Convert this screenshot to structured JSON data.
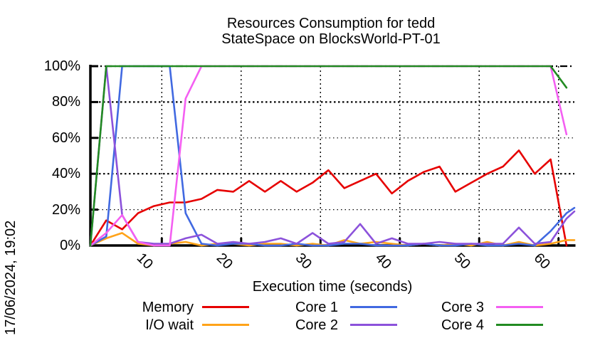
{
  "page": {
    "background": "#ffffff",
    "text_color": "#000000",
    "axis_color": "#000000"
  },
  "title": {
    "line1": "Resources Consumption for tedd",
    "line2": "StateSpace on BlocksWorld-PT-01"
  },
  "timestamp": "17/06/2024, 19:02",
  "chart_data": {
    "type": "line",
    "title": "Resources Consumption for tedd",
    "subtitle": "StateSpace on BlocksWorld-PT-01",
    "xlabel": "Execution time (seconds)",
    "ylabel": "",
    "xlim": [
      1,
      62
    ],
    "ylim": [
      0,
      100
    ],
    "grid": true,
    "legend_position": "bottom",
    "x_ticks": {
      "values": [
        10,
        20,
        30,
        40,
        50,
        60
      ],
      "labels": [
        "10",
        "20",
        "30",
        "40",
        "50",
        "60"
      ],
      "rotation_deg": 45
    },
    "y_ticks": {
      "values": [
        0,
        20,
        40,
        60,
        80,
        100
      ],
      "labels": [
        "0%",
        "20%",
        "40%",
        "60%",
        "80%",
        "100%"
      ]
    },
    "series": [
      {
        "name": "Memory",
        "color": "#e60000",
        "points": [
          [
            1,
            0
          ],
          [
            3,
            14
          ],
          [
            5,
            9
          ],
          [
            7,
            18
          ],
          [
            9,
            22
          ],
          [
            11,
            24
          ],
          [
            13,
            24
          ],
          [
            15,
            26
          ],
          [
            17,
            31
          ],
          [
            19,
            30
          ],
          [
            21,
            36
          ],
          [
            23,
            30
          ],
          [
            25,
            36
          ],
          [
            27,
            30
          ],
          [
            29,
            35
          ],
          [
            31,
            42
          ],
          [
            33,
            32
          ],
          [
            35,
            36
          ],
          [
            37,
            40
          ],
          [
            39,
            29
          ],
          [
            41,
            36
          ],
          [
            43,
            41
          ],
          [
            45,
            44
          ],
          [
            47,
            30
          ],
          [
            49,
            35
          ],
          [
            51,
            40
          ],
          [
            53,
            44
          ],
          [
            55,
            53
          ],
          [
            57,
            40
          ],
          [
            59,
            48
          ],
          [
            61,
            0
          ]
        ]
      },
      {
        "name": "I/O wait",
        "color": "#ffa319",
        "points": [
          [
            1,
            0
          ],
          [
            3,
            4
          ],
          [
            5,
            7
          ],
          [
            7,
            1
          ],
          [
            9,
            0
          ],
          [
            11,
            1
          ],
          [
            13,
            2
          ],
          [
            15,
            0
          ],
          [
            17,
            1
          ],
          [
            19,
            1
          ],
          [
            21,
            0
          ],
          [
            23,
            1
          ],
          [
            25,
            1
          ],
          [
            27,
            0
          ],
          [
            29,
            1
          ],
          [
            31,
            0
          ],
          [
            33,
            3
          ],
          [
            35,
            1
          ],
          [
            37,
            2
          ],
          [
            39,
            1
          ],
          [
            41,
            0
          ],
          [
            43,
            1
          ],
          [
            45,
            0
          ],
          [
            47,
            1
          ],
          [
            49,
            0
          ],
          [
            51,
            2
          ],
          [
            53,
            0
          ],
          [
            55,
            2
          ],
          [
            57,
            0
          ],
          [
            59,
            1
          ],
          [
            61,
            3
          ],
          [
            62,
            3
          ]
        ]
      },
      {
        "name": "Core 1",
        "color": "#4169e1",
        "points": [
          [
            1,
            0
          ],
          [
            3,
            5
          ],
          [
            5,
            100
          ],
          [
            7,
            100
          ],
          [
            9,
            100
          ],
          [
            11,
            100
          ],
          [
            13,
            18
          ],
          [
            15,
            1
          ],
          [
            17,
            0
          ],
          [
            19,
            1
          ],
          [
            21,
            1
          ],
          [
            23,
            0
          ],
          [
            25,
            0
          ],
          [
            27,
            1
          ],
          [
            29,
            0
          ],
          [
            31,
            0
          ],
          [
            33,
            1
          ],
          [
            35,
            1
          ],
          [
            37,
            0
          ],
          [
            39,
            0
          ],
          [
            41,
            0
          ],
          [
            43,
            1
          ],
          [
            45,
            0
          ],
          [
            47,
            0
          ],
          [
            49,
            1
          ],
          [
            51,
            0
          ],
          [
            53,
            0
          ],
          [
            55,
            1
          ],
          [
            57,
            0
          ],
          [
            59,
            8
          ],
          [
            61,
            18
          ],
          [
            62,
            21
          ]
        ]
      },
      {
        "name": "Core 2",
        "color": "#8c52db",
        "points": [
          [
            1,
            0
          ],
          [
            3,
            100
          ],
          [
            5,
            17
          ],
          [
            7,
            2
          ],
          [
            9,
            1
          ],
          [
            11,
            1
          ],
          [
            13,
            4
          ],
          [
            15,
            6
          ],
          [
            17,
            1
          ],
          [
            19,
            2
          ],
          [
            21,
            1
          ],
          [
            23,
            2
          ],
          [
            25,
            4
          ],
          [
            27,
            1
          ],
          [
            29,
            7
          ],
          [
            31,
            1
          ],
          [
            33,
            2
          ],
          [
            35,
            12
          ],
          [
            37,
            1
          ],
          [
            39,
            4
          ],
          [
            41,
            1
          ],
          [
            43,
            1
          ],
          [
            45,
            2
          ],
          [
            47,
            1
          ],
          [
            49,
            1
          ],
          [
            51,
            1
          ],
          [
            53,
            1
          ],
          [
            55,
            10
          ],
          [
            57,
            1
          ],
          [
            59,
            2
          ],
          [
            61,
            15
          ],
          [
            62,
            19
          ]
        ]
      },
      {
        "name": "Core 3",
        "color": "#f45ff2",
        "points": [
          [
            1,
            0
          ],
          [
            3,
            7
          ],
          [
            5,
            17
          ],
          [
            7,
            2
          ],
          [
            9,
            0
          ],
          [
            11,
            0
          ],
          [
            13,
            82
          ],
          [
            15,
            100
          ],
          [
            59,
            100
          ],
          [
            61,
            62
          ]
        ]
      },
      {
        "name": "Core 4",
        "color": "#228b22",
        "points": [
          [
            1,
            0
          ],
          [
            3,
            100
          ],
          [
            59,
            100
          ],
          [
            61,
            88
          ]
        ]
      }
    ]
  },
  "legend": {
    "columns": [
      [
        {
          "label": "Memory",
          "series": 0
        },
        {
          "label": "I/O wait",
          "series": 1
        }
      ],
      [
        {
          "label": "Core 1",
          "series": 2
        },
        {
          "label": "Core 2",
          "series": 3
        }
      ],
      [
        {
          "label": "Core 3",
          "series": 4
        },
        {
          "label": "Core 4",
          "series": 5
        }
      ]
    ]
  }
}
